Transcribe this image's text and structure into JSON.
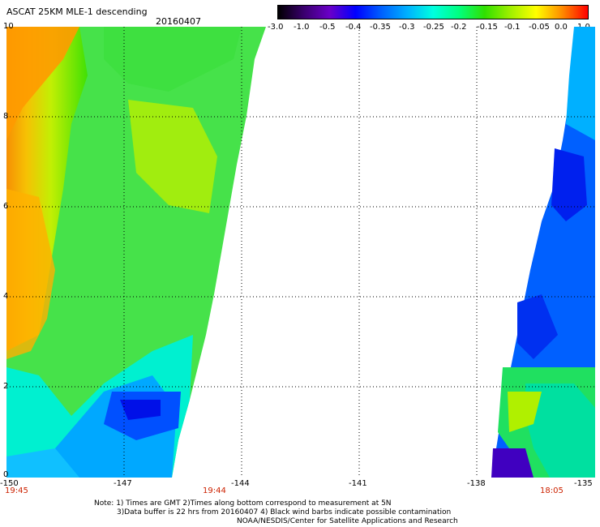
{
  "header": {
    "title": "ASCAT 25KM MLE-1 descending",
    "date": "20160407"
  },
  "colorbar": {
    "labels": [
      "-3.0",
      "-1.0",
      "-0.5",
      "-0.4",
      "-0.35",
      "-0.3",
      "-0.25",
      "-0.2",
      "-0.15",
      "-0.1",
      "-0.05",
      "0.0",
      "1.0"
    ],
    "colors": [
      "#000000",
      "#3a006e",
      "#6a00c8",
      "#0000ff",
      "#0060ff",
      "#00b0ff",
      "#00ffe0",
      "#00ff80",
      "#30e000",
      "#a0f000",
      "#ffff00",
      "#ff8c00",
      "#ff0000"
    ]
  },
  "map": {
    "y_ticks": [
      "0",
      "2",
      "4",
      "6",
      "8",
      "10"
    ],
    "x_ticks": [
      "-150",
      "-147",
      "-144",
      "-141",
      "-138",
      "-135"
    ],
    "times": [
      "19:45",
      "19:44",
      "18:05"
    ]
  },
  "notes": {
    "line1": "Note: 1) Times are GMT 2)Times along bottom correspond to measurement at 5N",
    "line2": "3)Data buffer is 22 hrs from 20160407 4) Black wind barbs indicate possible contamination",
    "line3": "NOAA/NESDIS/Center for Satellite Applications and Research"
  }
}
